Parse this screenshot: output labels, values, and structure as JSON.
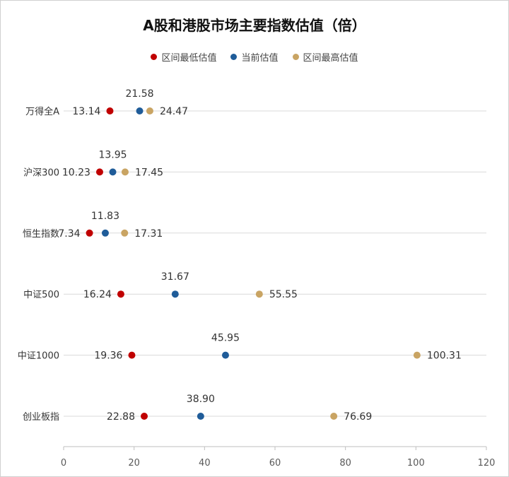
{
  "chart_data": {
    "type": "scatter",
    "title": "A股和港股市场主要指数估值（倍）",
    "categories": [
      "万得全A",
      "沪深300",
      "恒生指数",
      "中证500",
      "中证1000",
      "创业板指"
    ],
    "series": [
      {
        "name": "区间最低估值",
        "color": "#C00000",
        "values": [
          13.14,
          10.23,
          7.34,
          16.24,
          19.36,
          22.88
        ],
        "labels": [
          "13.14",
          "10.23",
          "7.34",
          "16.24",
          "19.36",
          "22.88"
        ],
        "label_position": "left"
      },
      {
        "name": "当前估值",
        "color": "#1F5C99",
        "values": [
          21.58,
          13.95,
          11.83,
          31.67,
          45.95,
          38.9
        ],
        "labels": [
          "21.58",
          "13.95",
          "11.83",
          "31.67",
          "45.95",
          "38.90"
        ],
        "label_position": "top"
      },
      {
        "name": "区间最高估值",
        "color": "#C9A463",
        "values": [
          24.47,
          17.45,
          17.31,
          55.55,
          100.31,
          76.69
        ],
        "labels": [
          "24.47",
          "17.45",
          "17.31",
          "55.55",
          "100.31",
          "76.69"
        ],
        "label_position": "right"
      }
    ],
    "xlim": [
      0,
      120
    ],
    "xticks": [
      "0",
      "20",
      "40",
      "60",
      "80",
      "100",
      "120"
    ],
    "xlabel": "",
    "ylabel": "",
    "grid": "horizontal",
    "legend_position": "top-center"
  }
}
